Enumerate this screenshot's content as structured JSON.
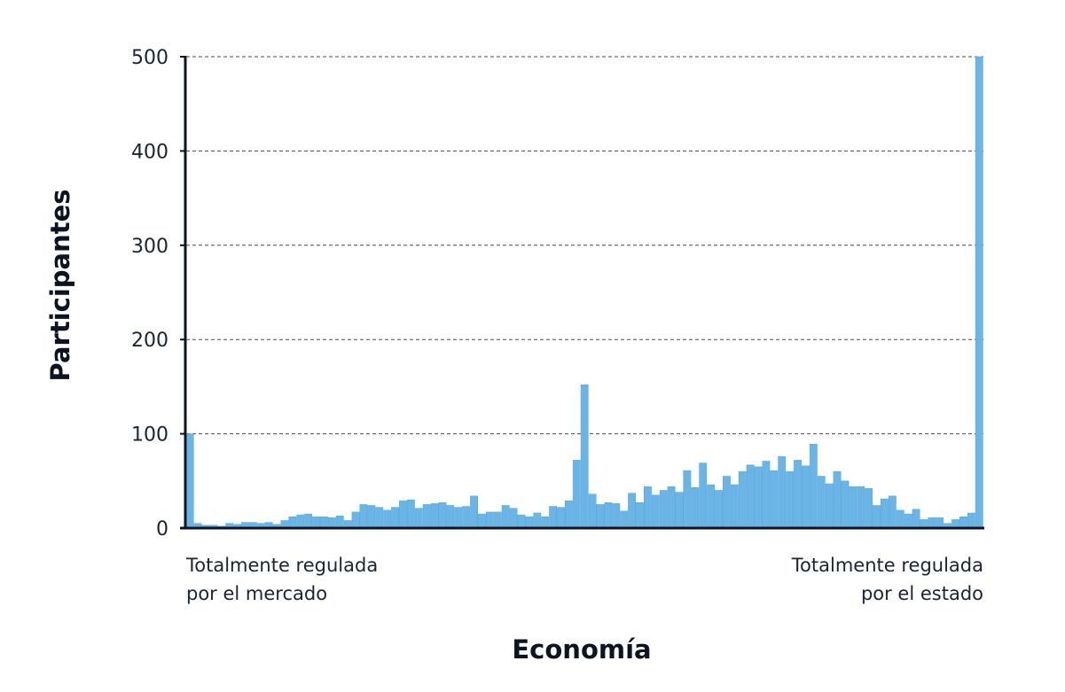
{
  "chart_data": {
    "type": "bar",
    "title": "",
    "xlabel": "Economía",
    "ylabel": "Participantes",
    "x_left_label": [
      "Totalmente regulada",
      "por el mercado"
    ],
    "x_right_label": [
      "Totalmente regulada",
      "por el estado"
    ],
    "ylim": [
      0,
      500
    ],
    "yticks": [
      0,
      100,
      200,
      300,
      400,
      500
    ],
    "grid": true,
    "color": "#6bb5e6",
    "values": [
      100,
      5,
      3,
      3,
      2,
      5,
      4,
      6,
      6,
      5,
      6,
      4,
      8,
      12,
      14,
      15,
      12,
      12,
      11,
      13,
      8,
      17,
      25,
      24,
      22,
      19,
      22,
      29,
      30,
      21,
      25,
      26,
      27,
      24,
      22,
      23,
      34,
      15,
      17,
      17,
      24,
      21,
      14,
      12,
      16,
      12,
      23,
      22,
      29,
      72,
      152,
      36,
      25,
      27,
      26,
      18,
      37,
      27,
      44,
      35,
      40,
      44,
      38,
      61,
      43,
      69,
      46,
      40,
      55,
      46,
      60,
      67,
      65,
      71,
      61,
      76,
      60,
      72,
      66,
      89,
      55,
      47,
      60,
      50,
      44,
      44,
      42,
      24,
      31,
      34,
      19,
      15,
      20,
      9,
      11,
      11,
      5,
      9,
      12,
      16,
      500
    ]
  }
}
